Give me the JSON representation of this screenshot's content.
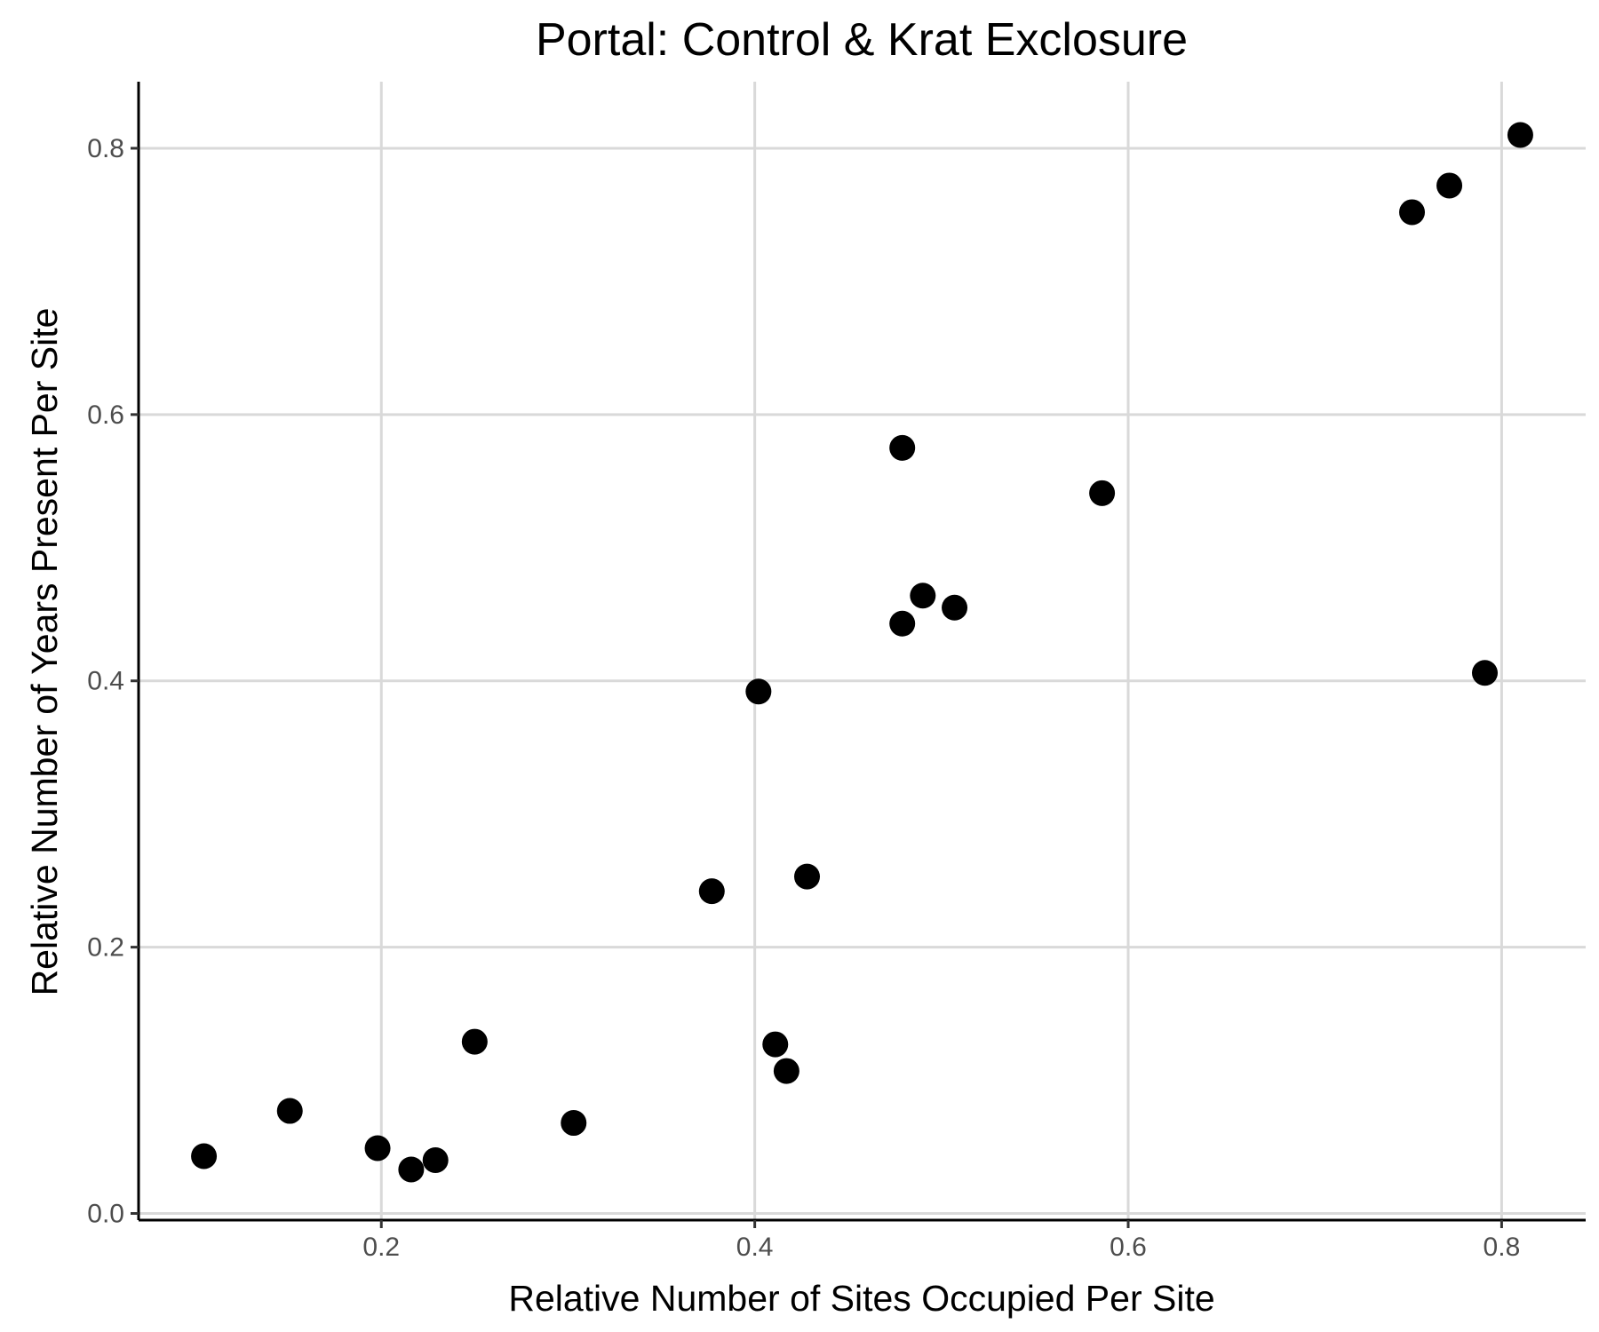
{
  "chart_data": {
    "type": "scatter",
    "title": "Portal: Control & Krat Exclosure",
    "xlabel": "Relative Number of Sites Occupied Per Site",
    "ylabel": "Relative Number of Years Present Per Site",
    "xlim": [
      0.07,
      0.845
    ],
    "ylim": [
      -0.005,
      0.85
    ],
    "xticks": [
      0.2,
      0.4,
      0.6,
      0.8
    ],
    "yticks": [
      0.0,
      0.2,
      0.4,
      0.6,
      0.8
    ],
    "xtick_labels": [
      "0.2",
      "0.4",
      "0.6",
      "0.8"
    ],
    "ytick_labels": [
      "0.0",
      "0.2",
      "0.4",
      "0.6",
      "0.8"
    ],
    "grid": true,
    "point_color": "#000000",
    "points": [
      {
        "x": 0.105,
        "y": 0.043
      },
      {
        "x": 0.151,
        "y": 0.077
      },
      {
        "x": 0.198,
        "y": 0.049
      },
      {
        "x": 0.216,
        "y": 0.033
      },
      {
        "x": 0.229,
        "y": 0.04
      },
      {
        "x": 0.25,
        "y": 0.129
      },
      {
        "x": 0.303,
        "y": 0.068
      },
      {
        "x": 0.377,
        "y": 0.242
      },
      {
        "x": 0.402,
        "y": 0.392
      },
      {
        "x": 0.411,
        "y": 0.127
      },
      {
        "x": 0.417,
        "y": 0.107
      },
      {
        "x": 0.428,
        "y": 0.253
      },
      {
        "x": 0.479,
        "y": 0.575
      },
      {
        "x": 0.479,
        "y": 0.443
      },
      {
        "x": 0.49,
        "y": 0.464
      },
      {
        "x": 0.507,
        "y": 0.455
      },
      {
        "x": 0.586,
        "y": 0.541
      },
      {
        "x": 0.752,
        "y": 0.752
      },
      {
        "x": 0.772,
        "y": 0.772
      },
      {
        "x": 0.791,
        "y": 0.406
      },
      {
        "x": 0.81,
        "y": 0.81
      }
    ]
  }
}
